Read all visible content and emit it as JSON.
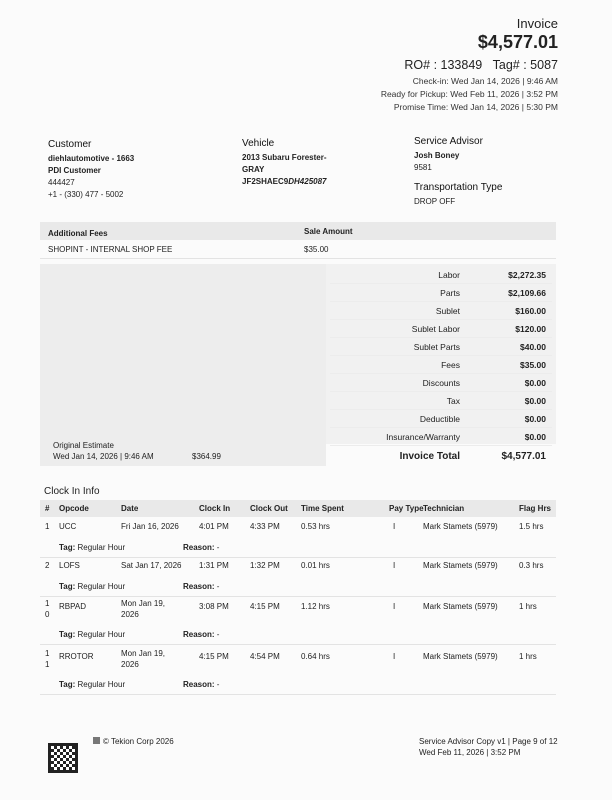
{
  "header": {
    "title": "Invoice",
    "total": "$4,577.01",
    "ro": "RO# : 133849",
    "tag": "Tag# : 5087",
    "check_in": "Check-in: Wed Jan 14, 2026 | 9:46 AM",
    "ready": "Ready for Pickup: Wed Feb 11, 2026 | 3:52 PM",
    "promise": "Promise Time: Wed Jan 14, 2026 | 5:30 PM"
  },
  "customer": {
    "label": "Customer",
    "name": "diehlautomotive - 1663",
    "type": "PDI Customer",
    "id": "444427",
    "phone": "+1 - (330) 477 - 5002"
  },
  "vehicle": {
    "label": "Vehicle",
    "model": "2013 Subaru Forester-",
    "color": "GRAY",
    "vin_a": "JF2SHAEC9",
    "vin_b": "DH425087"
  },
  "advisor": {
    "label": "Service Advisor",
    "name": "Josh Boney",
    "id": "9581",
    "transport_label": "Transportation Type",
    "transport": "DROP OFF"
  },
  "fees": {
    "col1": "Additional Fees",
    "col2": "Sale Amount",
    "rows": [
      {
        "name": "SHOPINT - INTERNAL SHOP FEE",
        "amount": "$35.00"
      }
    ]
  },
  "totals": [
    {
      "label": "Labor",
      "value": "$2,272.35"
    },
    {
      "label": "Parts",
      "value": "$2,109.66"
    },
    {
      "label": "Sublet",
      "value": "$160.00"
    },
    {
      "label": "Sublet Labor",
      "value": "$120.00"
    },
    {
      "label": "Sublet Parts",
      "value": "$40.00"
    },
    {
      "label": "Fees",
      "value": "$35.00"
    },
    {
      "label": "Discounts",
      "value": "$0.00"
    },
    {
      "label": "Tax",
      "value": "$0.00"
    },
    {
      "label": "Deductible",
      "value": "$0.00"
    },
    {
      "label": "Insurance/Warranty",
      "value": "$0.00"
    }
  ],
  "invoice_total": {
    "label": "Invoice Total",
    "value": "$4,577.01"
  },
  "estimate": {
    "label": "Original Estimate",
    "date": "Wed Jan 14, 2026 | 9:46 AM",
    "amount": "$364.99"
  },
  "clock": {
    "title": "Clock In Info",
    "headers": [
      "#",
      "Opcode",
      "Date",
      "Clock In",
      "Clock Out",
      "Time Spent",
      "Pay Type",
      "Technician",
      "Flag Hrs"
    ],
    "rows": [
      {
        "num": "1",
        "opcode": "UCC",
        "date": "Fri Jan 16, 2026",
        "in": "4:01 PM",
        "out": "4:33 PM",
        "spent": "0.53 hrs",
        "pay": "I",
        "tech": "Mark Stamets (5979)",
        "flag": "1.5 hrs",
        "tag": "Regular Hour",
        "reason": "-"
      },
      {
        "num": "2",
        "opcode": "LOFS",
        "date": "Sat Jan 17, 2026",
        "in": "1:31 PM",
        "out": "1:32 PM",
        "spent": "0.01 hrs",
        "pay": "I",
        "tech": "Mark Stamets (5979)",
        "flag": "0.3 hrs",
        "tag": "Regular Hour",
        "reason": "-"
      },
      {
        "num": "10",
        "opcode": "RBPAD",
        "date": "Mon Jan 19, 2026",
        "in": "3:08 PM",
        "out": "4:15 PM",
        "spent": "1.12 hrs",
        "pay": "I",
        "tech": "Mark Stamets (5979)",
        "flag": "1 hrs",
        "tag": "Regular Hour",
        "reason": "-"
      },
      {
        "num": "11",
        "opcode": "RROTOR",
        "date": "Mon Jan 19, 2026",
        "in": "4:15 PM",
        "out": "4:54 PM",
        "spent": "0.64 hrs",
        "pay": "I",
        "tech": "Mark Stamets (5979)",
        "flag": "1 hrs",
        "tag": "Regular Hour",
        "reason": "-"
      }
    ],
    "tag_label": "Tag:",
    "reason_label": "Reason:"
  },
  "footer": {
    "copyright": "© Tekion Corp 2026",
    "copy": "Service Advisor Copy v1 | Page 9 of 12",
    "date": "Wed Feb 11, 2026 | 3:52 PM"
  }
}
